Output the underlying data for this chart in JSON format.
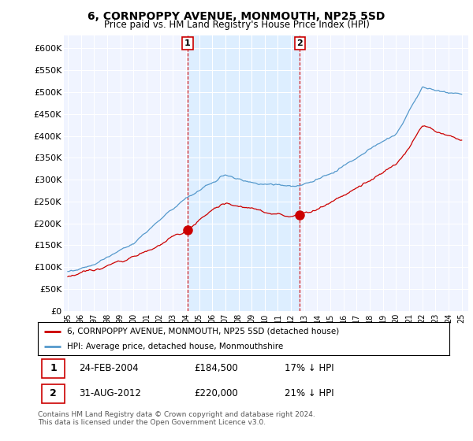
{
  "title": "6, CORNPOPPY AVENUE, MONMOUTH, NP25 5SD",
  "subtitle": "Price paid vs. HM Land Registry's House Price Index (HPI)",
  "yticks": [
    0,
    50000,
    100000,
    150000,
    200000,
    250000,
    300000,
    350000,
    400000,
    450000,
    500000,
    550000,
    600000
  ],
  "ytick_labels": [
    "£0",
    "£50K",
    "£100K",
    "£150K",
    "£200K",
    "£250K",
    "£300K",
    "£350K",
    "£400K",
    "£450K",
    "£500K",
    "£550K",
    "£600K"
  ],
  "ylim": [
    0,
    630000
  ],
  "xlim_start": 1994.7,
  "xlim_end": 2025.5,
  "xtick_labels": [
    "95",
    "96",
    "97",
    "98",
    "99",
    "00",
    "01",
    "02",
    "03",
    "04",
    "05",
    "06",
    "07",
    "08",
    "09",
    "10",
    "11",
    "12",
    "13",
    "14",
    "15",
    "16",
    "17",
    "18",
    "19",
    "20",
    "21",
    "22",
    "23",
    "24",
    "25"
  ],
  "red_line_color": "#cc0000",
  "blue_line_color": "#5599cc",
  "blue_fill_color": "#ddeeff",
  "marker1_x": 2004.12,
  "marker1_y": 184500,
  "marker2_x": 2012.67,
  "marker2_y": 220000,
  "vline1_x": 2004.12,
  "vline2_x": 2012.67,
  "legend_line1": "6, CORNPOPPY AVENUE, MONMOUTH, NP25 5SD (detached house)",
  "legend_line2": "HPI: Average price, detached house, Monmouthshire",
  "note1_date": "24-FEB-2004",
  "note1_price": "£184,500",
  "note1_info": "17% ↓ HPI",
  "note2_date": "31-AUG-2012",
  "note2_price": "£220,000",
  "note2_info": "21% ↓ HPI",
  "footnote": "Contains HM Land Registry data © Crown copyright and database right 2024.\nThis data is licensed under the Open Government Licence v3.0.",
  "background_color": "#ffffff",
  "plot_bg_color": "#f0f4ff"
}
